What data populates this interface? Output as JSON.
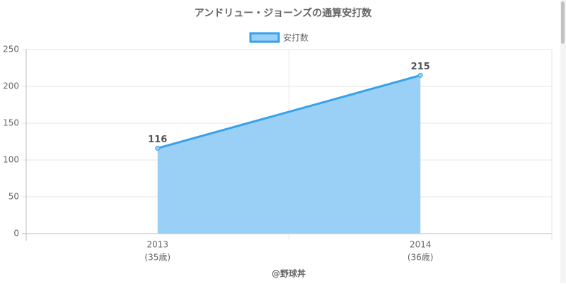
{
  "chart_data": {
    "type": "line",
    "title": "アンドリュー・ジョーンズの通算安打数",
    "categories": [
      "2013",
      "2014"
    ],
    "category_sublabels": [
      "(35歳)",
      "(36歳)"
    ],
    "series": [
      {
        "name": "安打数",
        "color": "#36a2eb",
        "fill": "#9ad0f5",
        "values": [
          116,
          215
        ]
      }
    ],
    "ylim": [
      0,
      250
    ],
    "yticks": [
      0,
      50,
      100,
      150,
      200,
      250
    ],
    "grid": true,
    "x_axis_label": "@野球丼",
    "legend": "top"
  }
}
